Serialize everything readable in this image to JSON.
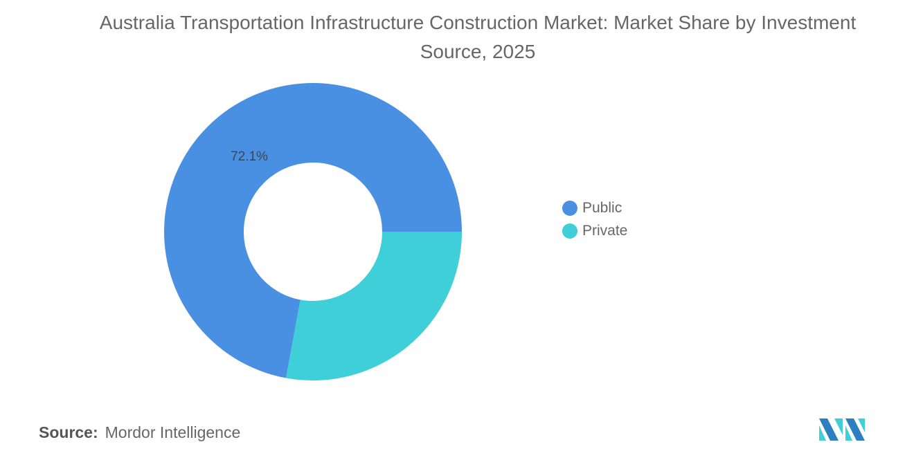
{
  "chart_data": {
    "type": "pie",
    "variant": "donut",
    "title": "Australia Transportation Infrastructure Construction Market: Market Share by Investment Source, 2025",
    "categories": [
      "Public",
      "Private"
    ],
    "values": [
      72.1,
      27.9
    ],
    "unit": "%",
    "data_labels": [
      "72.1%",
      ""
    ],
    "colors": [
      "#4A90E2",
      "#3ECFD9"
    ],
    "legend_position": "right"
  },
  "source": {
    "label": "Source:",
    "text": "Mordor Intelligence"
  },
  "logo": {
    "text": "Mordor Intelligence"
  }
}
